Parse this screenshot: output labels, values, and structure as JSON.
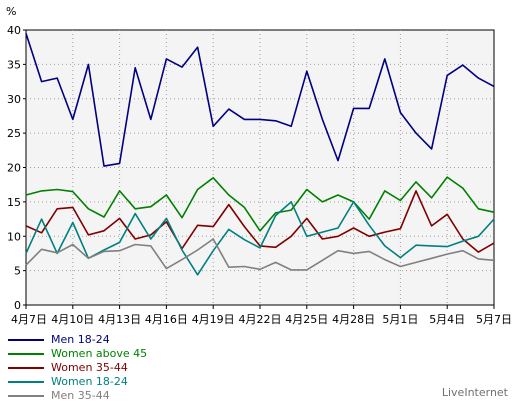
{
  "chart_data": {
    "type": "line",
    "y_unit": "%",
    "ylim": [
      0,
      40
    ],
    "y_ticks": [
      0,
      5,
      10,
      15,
      20,
      25,
      30,
      35,
      40
    ],
    "x_tick_labels": [
      "4月7日",
      "4月10日",
      "4月13日",
      "4月16日",
      "4月19日",
      "4月22日",
      "4月25日",
      "4月28日",
      "5月1日",
      "5月4日",
      "5月7日"
    ],
    "x_tick_index": [
      0,
      3,
      6,
      9,
      12,
      15,
      18,
      21,
      24,
      27,
      30
    ],
    "grid": true,
    "legend_position": "bottom-left",
    "series": [
      {
        "name": "Men 18-24",
        "color": "#000080",
        "values": [
          39.5,
          32.5,
          33.0,
          27.0,
          35.0,
          20.2,
          20.6,
          34.5,
          27.0,
          35.8,
          34.6,
          37.5,
          26.0,
          28.5,
          27.0,
          27.0,
          26.8,
          26.0,
          34.0,
          27.0,
          21.0,
          28.6,
          28.6,
          35.8,
          28.0,
          25.0,
          22.7,
          33.4,
          34.9,
          33.0,
          31.8
        ]
      },
      {
        "name": "Women above 45",
        "color": "#008000",
        "values": [
          16.0,
          16.6,
          16.8,
          16.5,
          14.0,
          12.8,
          16.6,
          14.0,
          14.3,
          16.0,
          12.7,
          16.8,
          18.5,
          16.0,
          14.2,
          10.8,
          13.4,
          13.8,
          16.8,
          15.0,
          16.0,
          15.0,
          12.5,
          16.6,
          15.2,
          17.9,
          15.6,
          18.6,
          17.0,
          14.0,
          13.5
        ]
      },
      {
        "name": "Women 35-44",
        "color": "#800000",
        "values": [
          11.5,
          10.5,
          14.0,
          14.2,
          10.2,
          10.8,
          12.6,
          9.6,
          10.2,
          12.1,
          8.2,
          11.6,
          11.4,
          14.6,
          11.4,
          8.6,
          8.4,
          10.0,
          12.6,
          9.6,
          10.0,
          11.2,
          10.0,
          10.6,
          11.1,
          16.6,
          11.5,
          13.2,
          9.6,
          7.7,
          9.0
        ]
      },
      {
        "name": "Women 18-24",
        "color": "#008080",
        "values": [
          7.5,
          12.5,
          7.5,
          12.0,
          6.8,
          8.0,
          9.1,
          13.3,
          9.6,
          12.6,
          8.0,
          4.4,
          7.9,
          11.0,
          9.5,
          8.3,
          13.0,
          15.0,
          10.0,
          10.6,
          11.2,
          15.0,
          11.6,
          8.6,
          6.9,
          8.7,
          8.6,
          8.5,
          9.3,
          10.0,
          12.5
        ]
      },
      {
        "name": "Men 35-44",
        "color": "#808080",
        "values": [
          5.8,
          8.1,
          7.6,
          8.8,
          6.8,
          7.8,
          7.9,
          8.8,
          8.6,
          5.3,
          6.6,
          8.0,
          9.6,
          5.5,
          5.6,
          5.2,
          6.2,
          5.1,
          5.1,
          6.5,
          7.9,
          7.5,
          7.8,
          6.6,
          5.6,
          6.2,
          6.8,
          7.4,
          7.9,
          6.7,
          6.5
        ]
      }
    ]
  },
  "brand": "LiveInternet"
}
